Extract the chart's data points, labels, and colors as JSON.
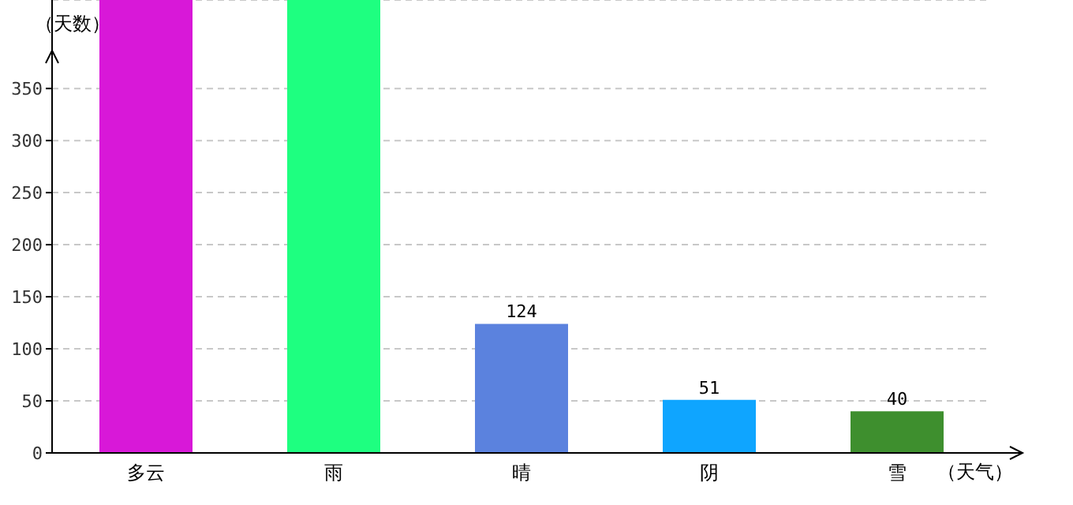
{
  "chart_data": {
    "type": "bar",
    "xlabel": "（天气）",
    "ylabel": "（天数）",
    "categories": [
      "多云",
      "雨",
      "晴",
      "阴",
      "雪"
    ],
    "values": [
      435,
      435,
      124,
      51,
      40
    ],
    "colors": [
      "#d818d8",
      "#1eff80",
      "#5b82de",
      "#0fa5ff",
      "#3e8f2e"
    ],
    "value_labels": [
      null,
      null,
      "124",
      "51",
      "40"
    ],
    "ylim": [
      0,
      435
    ],
    "yticks": [
      0,
      50,
      100,
      150,
      200,
      250,
      300,
      350
    ],
    "grid": "y"
  }
}
